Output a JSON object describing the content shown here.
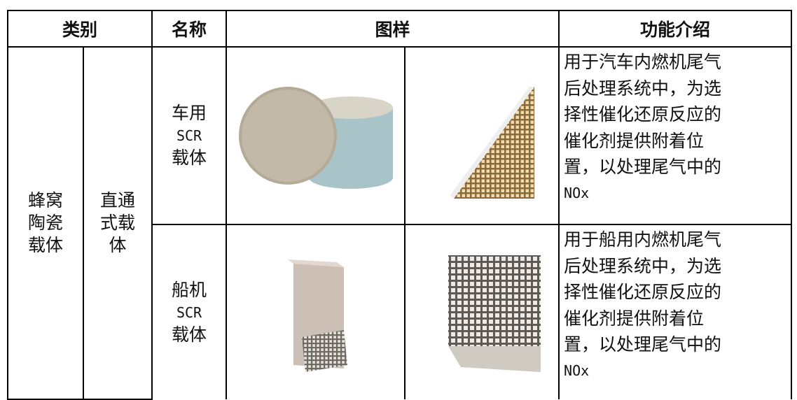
{
  "table": {
    "header": {
      "category": "类别",
      "name": "名称",
      "sample": "图样",
      "function": "功能介绍"
    },
    "group": {
      "type_lines": [
        "蜂窝",
        "陶瓷",
        "载体"
      ],
      "subtype_lines": [
        "直通",
        "式载",
        "体"
      ]
    },
    "rows": [
      {
        "name_lines": [
          "车用",
          "SCR",
          "载体"
        ],
        "function_lines": [
          "用于汽车内燃机尾气",
          "后处理系统中，为选",
          "择性催化还原反应的",
          "催化剂提供附着位",
          "置，以处理尾气中的",
          "NOx"
        ]
      },
      {
        "name_lines": [
          "船机",
          "SCR",
          "载体"
        ],
        "function_lines": [
          "用于船用内燃机尾气",
          "后处理系统中，为选",
          "择性催化还原反应的",
          "催化剂提供附着位",
          "置，以处理尾气中的",
          "NOx"
        ]
      }
    ]
  }
}
